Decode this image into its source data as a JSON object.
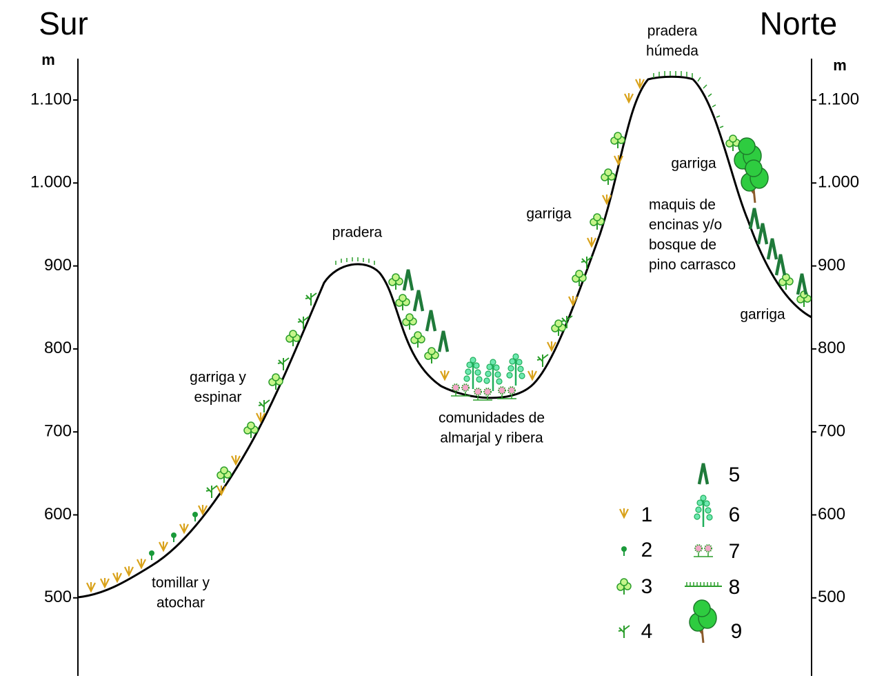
{
  "header": {
    "left": "Sur",
    "right": "Norte"
  },
  "axes": {
    "left": {
      "unit": "m",
      "ticks": [
        "1.100",
        "1.000",
        "900",
        "800",
        "700",
        "600",
        "500"
      ]
    },
    "right": {
      "unit": "m",
      "ticks": [
        "1.100",
        "1.000",
        "900",
        "800",
        "700",
        "600",
        "500"
      ]
    }
  },
  "annotations": [
    [
      "tomillar y",
      "atochar"
    ],
    [
      "garriga y",
      "espinar"
    ],
    [
      "pradera"
    ],
    [
      "comunidades de",
      "almarjal y ribera"
    ],
    [
      "garriga"
    ],
    [
      "pradera",
      "húmeda"
    ],
    [
      "garriga"
    ],
    [
      "maquis de",
      "encinas y/o",
      "bosque de",
      "pino carrasco"
    ],
    [
      "garriga"
    ]
  ],
  "legend": {
    "items": [
      "1",
      "2",
      "3",
      "4",
      "5",
      "6",
      "7",
      "8",
      "9"
    ]
  }
}
